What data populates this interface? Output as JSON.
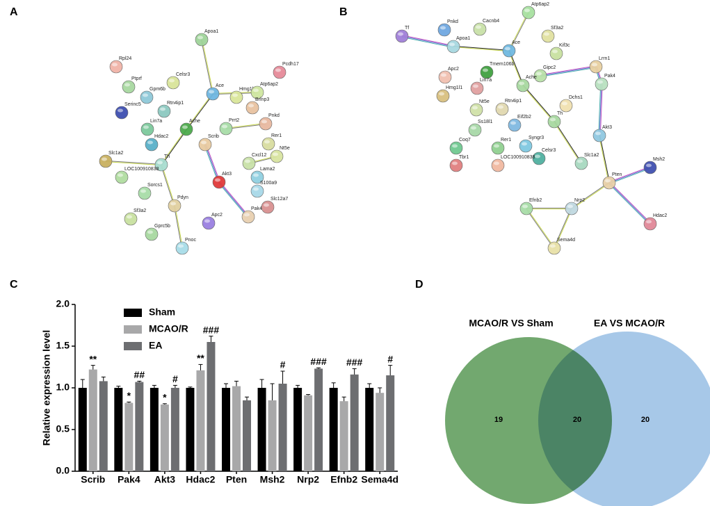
{
  "panels": [
    "A",
    "B",
    "C",
    "D"
  ],
  "network_a": {
    "nodes": [
      {
        "label": "Apoa1",
        "color": "#9fd49a"
      },
      {
        "label": "Rpl24",
        "color": "#f0b3a8"
      },
      {
        "label": "Pcdh17",
        "color": "#e68a99"
      },
      {
        "label": "Ptprf",
        "color": "#a8d8a0"
      },
      {
        "label": "Celsr3",
        "color": "#d8e49a"
      },
      {
        "label": "Hmg1l1",
        "color": "#d9e69a"
      },
      {
        "label": "Atp6ap2",
        "color": "#cfe6a0"
      },
      {
        "label": "Gpm6b",
        "color": "#8ec8d8"
      },
      {
        "label": "Ace",
        "color": "#6fb6e0"
      },
      {
        "label": "Brinp3",
        "color": "#e8c2a0"
      },
      {
        "label": "Serinc5",
        "color": "#3e4fb0"
      },
      {
        "label": "Rtn4ip1",
        "color": "#8cc8c0"
      },
      {
        "label": "Ache",
        "color": "#4caa4c"
      },
      {
        "label": "Pnkd",
        "color": "#e8b8a0"
      },
      {
        "label": "Prrt2",
        "color": "#a8dca8"
      },
      {
        "label": "Lin7a",
        "color": "#7cc89c"
      },
      {
        "label": "Rer1",
        "color": "#d8dca0"
      },
      {
        "label": "Hdac2",
        "color": "#5ab0c8"
      },
      {
        "label": "Scrib",
        "color": "#e8caa0"
      },
      {
        "label": "Nt5e",
        "color": "#d8e4a0"
      },
      {
        "label": "Cxcl12",
        "color": "#c8e0a8"
      },
      {
        "label": "Slc1a2",
        "color": "#c8b060"
      },
      {
        "label": "Th",
        "color": "#a8dcd0"
      },
      {
        "label": "LOC100910838",
        "color": "#b0dca0"
      },
      {
        "label": "Lama2",
        "color": "#90d0e0"
      },
      {
        "label": "Akt3",
        "color": "#e03a3a"
      },
      {
        "label": "S100a9",
        "color": "#a8d8e8"
      },
      {
        "label": "Sorcs1",
        "color": "#a8dca8"
      },
      {
        "label": "Pdyn",
        "color": "#e0d0a0"
      },
      {
        "label": "Slc12a7",
        "color": "#d89090"
      },
      {
        "label": "Sf3a2",
        "color": "#c8e0a0"
      },
      {
        "label": "Apc2",
        "color": "#9a80e0"
      },
      {
        "label": "Pak4",
        "color": "#e8d0b0"
      },
      {
        "label": "Gprc5b",
        "color": "#a8d8a0"
      },
      {
        "label": "Pnoc",
        "color": "#a8dce8"
      }
    ]
  },
  "network_b": {
    "nodes": [
      {
        "label": "Tf",
        "color": "#a080d8"
      },
      {
        "label": "Pnkd",
        "color": "#70a8e0"
      },
      {
        "label": "Cacnb4",
        "color": "#c8e0a8"
      },
      {
        "label": "Atp6ap2",
        "color": "#a8e0a0"
      },
      {
        "label": "Apoa1",
        "color": "#a8d8e0"
      },
      {
        "label": "Ace",
        "color": "#70b8e0"
      },
      {
        "label": "Sf3a2",
        "color": "#e0e0a0"
      },
      {
        "label": "Kif3c",
        "color": "#c8e0a0"
      },
      {
        "label": "Apc2",
        "color": "#f0c0b0"
      },
      {
        "label": "Tmem106b",
        "color": "#40a040"
      },
      {
        "label": "Hmg1l1",
        "color": "#d8c080"
      },
      {
        "label": "Lin7a",
        "color": "#e0a0a0"
      },
      {
        "label": "Gipc2",
        "color": "#b8e0a8"
      },
      {
        "label": "Lrrn1",
        "color": "#e8d0a0"
      },
      {
        "label": "Ache",
        "color": "#a8d8a0"
      },
      {
        "label": "Pak4",
        "color": "#b8e0c0"
      },
      {
        "label": "Dchs1",
        "color": "#f0e0b0"
      },
      {
        "label": "Nt5e",
        "color": "#d0e0a8"
      },
      {
        "label": "Rtn4ip1",
        "color": "#e0d8b0"
      },
      {
        "label": "Eif2b2",
        "color": "#80b8e0"
      },
      {
        "label": "Th",
        "color": "#a8d8a0"
      },
      {
        "label": "Ss18l1",
        "color": "#a8d8a8"
      },
      {
        "label": "Akt3",
        "color": "#90c8e0"
      },
      {
        "label": "Coq7",
        "color": "#70c890"
      },
      {
        "label": "Rer1",
        "color": "#90d090"
      },
      {
        "label": "Syngr3",
        "color": "#80c8e0"
      },
      {
        "label": "Celsr3",
        "color": "#50b0a0"
      },
      {
        "label": "Slc1a2",
        "color": "#a8d8c0"
      },
      {
        "label": "Tbr1",
        "color": "#e08080"
      },
      {
        "label": "LOC100910838",
        "color": "#f0b8a0"
      },
      {
        "label": "Msh2",
        "color": "#4050b0"
      },
      {
        "label": "Pten",
        "color": "#e8d0a8"
      },
      {
        "label": "Efnb2",
        "color": "#a8dca8"
      },
      {
        "label": "Nrp2",
        "color": "#c0d8e0"
      },
      {
        "label": "Hdac2",
        "color": "#e08898"
      },
      {
        "label": "Sema4d",
        "color": "#e8e0a8"
      }
    ]
  },
  "chart_data": [
    {
      "type": "bar",
      "y_label": "Relative expression level",
      "categories": [
        "Scrib",
        "Pak4",
        "Akt3",
        "Hdac2",
        "Pten",
        "Msh2",
        "Nrp2",
        "Efnb2",
        "Sema4d"
      ],
      "series": [
        {
          "name": "Sham",
          "color": "#000000",
          "values": [
            1.0,
            1.0,
            1.0,
            1.0,
            1.0,
            1.0,
            1.0,
            1.0,
            1.0
          ],
          "errors": [
            0.1,
            0.02,
            0.03,
            0.01,
            0.05,
            0.1,
            0.03,
            0.06,
            0.05
          ],
          "annotations": [
            null,
            null,
            null,
            null,
            null,
            null,
            null,
            null,
            null
          ]
        },
        {
          "name": "MCAO/R",
          "color": "#a8a8a9",
          "values": [
            1.22,
            0.82,
            0.8,
            1.21,
            1.02,
            0.85,
            0.91,
            0.84,
            0.94
          ],
          "errors": [
            0.05,
            0.01,
            0.01,
            0.07,
            0.06,
            0.2,
            0.01,
            0.05,
            0.06
          ],
          "annotations": [
            "**",
            "*",
            "*",
            "**",
            null,
            null,
            null,
            null,
            null
          ]
        },
        {
          "name": "EA",
          "color": "#6d6e71",
          "values": [
            1.08,
            1.07,
            1.0,
            1.55,
            0.85,
            1.05,
            1.23,
            1.16,
            1.15
          ],
          "errors": [
            0.05,
            0.01,
            0.03,
            0.07,
            0.04,
            0.15,
            0.01,
            0.07,
            0.12
          ],
          "annotations": [
            null,
            "##",
            "#",
            "###",
            null,
            "#",
            "###",
            "###",
            "#"
          ]
        }
      ],
      "ylim": [
        0,
        2
      ],
      "yticks": [
        {
          "value": 0,
          "label": "0.0"
        },
        0.5,
        {
          "value": 1,
          "label": "1.0"
        },
        1.5,
        {
          "value": 2,
          "label": "2.0"
        }
      ]
    },
    {
      "type": "venn",
      "sets": [
        {
          "name": "MCAO/R VS Sham",
          "color": "#72a86f",
          "count": 19
        },
        {
          "name": "EA VS MCAO/R",
          "color": "#a7c8e8",
          "count": 20
        }
      ],
      "intersection": 20
    }
  ]
}
